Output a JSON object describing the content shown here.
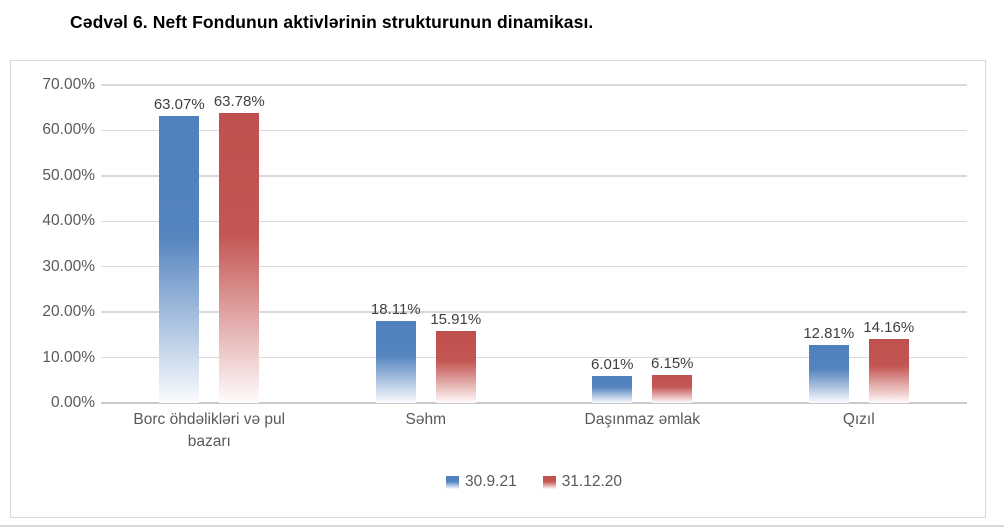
{
  "title": "Cədvəl 6. Neft Fondunun aktivlərinin strukturunun dinamikası.",
  "chart_data": {
    "type": "bar",
    "title": "Cədvəl 6. Neft Fondunun aktivlərinin strukturunun dinamikası.",
    "categories": [
      "Borc öhdəlikləri və pul bazarı",
      "Səhm",
      "Daşınmaz əmlak",
      "Qızıl"
    ],
    "series": [
      {
        "name": "30.9.21",
        "color": "#4F81BD",
        "values": [
          63.07,
          18.11,
          6.01,
          12.81
        ],
        "labels": [
          "63.07%",
          "18.11%",
          "6.01%",
          "12.81%"
        ]
      },
      {
        "name": "31.12.20",
        "color": "#C0504D",
        "values": [
          63.78,
          15.91,
          6.15,
          14.16
        ],
        "labels": [
          "63.78%",
          "15.91%",
          "6.15%",
          "14.16%"
        ]
      }
    ],
    "y_ticks": [
      "70.00%",
      "60.00%",
      "50.00%",
      "40.00%",
      "30.00%",
      "20.00%",
      "10.00%",
      "0.00%"
    ],
    "ylim": [
      0,
      70
    ],
    "xlabel": "",
    "ylabel": "",
    "grid": true,
    "legend_position": "bottom"
  },
  "colors": {
    "series_blue": "#4F81BD",
    "series_red": "#C0504D",
    "gridline": "#D9D9D9",
    "axis_text": "#595959",
    "data_label_text": "#404040",
    "title_text": "#000000",
    "frame_border": "#D9D9D9"
  }
}
